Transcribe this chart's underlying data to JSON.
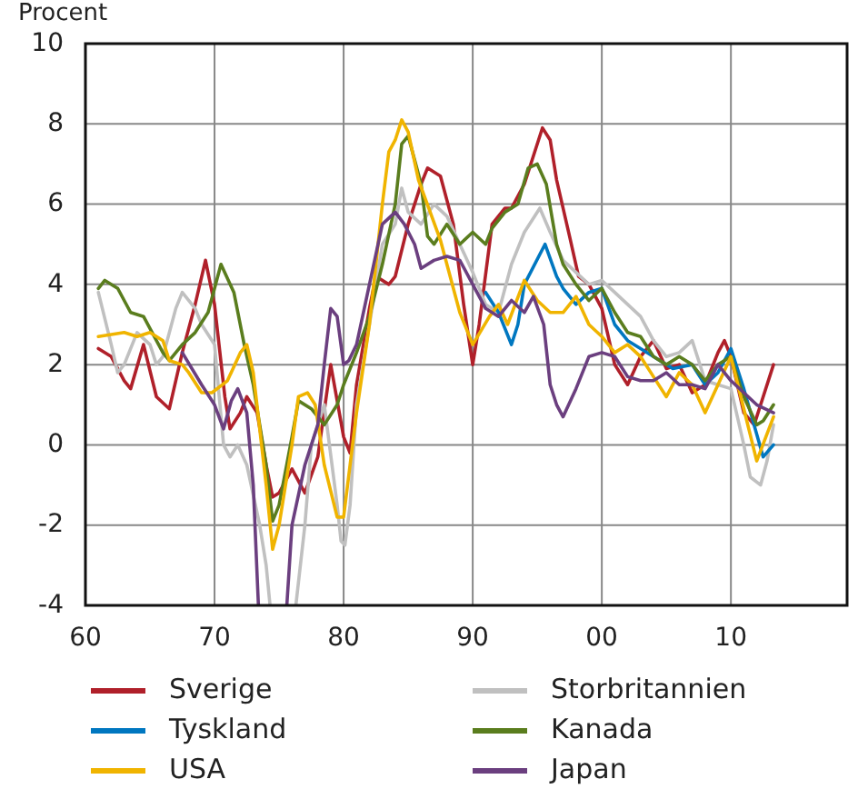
{
  "chart_data": {
    "type": "line",
    "ylabel": "Procent",
    "xlim": [
      1960,
      2019
    ],
    "xticks": [
      {
        "value": 1960,
        "label": "60"
      },
      {
        "value": 1970,
        "label": "70"
      },
      {
        "value": 1980,
        "label": "80"
      },
      {
        "value": 1990,
        "label": "90"
      },
      {
        "value": 2000,
        "label": "00"
      },
      {
        "value": 2010,
        "label": "10"
      }
    ],
    "ylim": [
      -4,
      10
    ],
    "yticks": [
      -4,
      -2,
      0,
      2,
      4,
      6,
      8,
      10
    ],
    "grid": true,
    "legend": "bottom",
    "line_style": "solid",
    "marker": "none",
    "series": [
      {
        "name": "Sverige",
        "color": "#b0202a",
        "x": [
          1961,
          1962,
          1963,
          1963.5,
          1964.5,
          1965.5,
          1966.5,
          1967.5,
          1968.5,
          1969.3,
          1970,
          1970.8,
          1971.2,
          1972,
          1972.5,
          1973.3,
          1974,
          1974.5,
          1975,
          1976,
          1977,
          1978,
          1979,
          1980,
          1980.5,
          1981,
          1982,
          1982.5,
          1983.5,
          1984,
          1985,
          1986,
          1986.5,
          1987.5,
          1988.5,
          1989.3,
          1990,
          1990.5,
          1991.5,
          1992.5,
          1993,
          1994,
          1995.4,
          1996,
          1996.5,
          1997.5,
          1998.2,
          1999,
          2000,
          2001,
          2002,
          2003,
          2004,
          2005,
          2006,
          2007,
          2008,
          2009,
          2009.5,
          2010,
          2011,
          2011.8,
          2012.5,
          2013.3
        ],
        "values": [
          2.4,
          2.2,
          1.6,
          1.4,
          2.5,
          1.2,
          0.9,
          2.3,
          3.5,
          4.6,
          3.5,
          1.2,
          0.4,
          0.8,
          1.2,
          0.8,
          -0.5,
          -1.3,
          -1.2,
          -0.6,
          -1.2,
          -0.3,
          2.0,
          0.2,
          -0.2,
          1.5,
          3.4,
          4.2,
          4.0,
          4.2,
          5.5,
          6.5,
          6.9,
          6.7,
          5.5,
          3.5,
          2.0,
          3.0,
          5.5,
          5.9,
          5.9,
          6.5,
          7.9,
          7.6,
          6.6,
          5.2,
          4.2,
          4.0,
          3.4,
          2.0,
          1.5,
          2.2,
          2.6,
          1.9,
          2.0,
          1.3,
          1.5,
          2.3,
          2.6,
          2.2,
          0.8,
          0.5,
          1.2,
          2.0
        ]
      },
      {
        "name": "Storbritannien",
        "color": "#c0c0c0",
        "x": [
          1961,
          1962,
          1962.5,
          1963,
          1964,
          1965,
          1965.5,
          1966,
          1967,
          1967.5,
          1968.5,
          1969,
          1970,
          1970.7,
          1971.2,
          1971.8,
          1972.5,
          1973.5,
          1974,
          1974.3,
          1975,
          1976.3,
          1977,
          1977.5,
          1978.5,
          1979.5,
          1979.8,
          1980.1,
          1980.5,
          1981,
          1982,
          1983,
          1984,
          1984.5,
          1985,
          1986,
          1987,
          1988,
          1989,
          1990,
          1991,
          1992,
          1993,
          1994,
          1995.2,
          1996,
          1997,
          1998,
          1999,
          2000,
          2001,
          2002,
          2003,
          2004,
          2005,
          2006,
          2007,
          2008,
          2009,
          2010,
          2011,
          2011.5,
          2012.3,
          2012.8,
          2013.3
        ],
        "values": [
          3.8,
          2.5,
          1.8,
          2.0,
          2.8,
          2.5,
          2.0,
          2.2,
          3.4,
          3.8,
          3.4,
          3.0,
          2.5,
          0.0,
          -0.3,
          0.0,
          -0.5,
          -2.0,
          -3.0,
          -4,
          null,
          -4,
          -2,
          0.0,
          1.0,
          -1.5,
          -2.4,
          -2.5,
          -1.5,
          1.0,
          3.0,
          5.0,
          5.5,
          6.4,
          5.8,
          5.5,
          6.0,
          5.7,
          5.0,
          4.3,
          3.5,
          3.3,
          4.5,
          5.3,
          5.9,
          5.3,
          4.6,
          4.3,
          4.0,
          4.1,
          3.8,
          3.5,
          3.2,
          2.6,
          2.2,
          2.3,
          2.6,
          1.6,
          1.5,
          1.4,
          0.0,
          -0.8,
          -1.0,
          -0.4,
          0.5
        ]
      },
      {
        "name": "Tyskland",
        "color": "#0077c0",
        "x": [
          1991,
          1992,
          1993,
          1993.5,
          1994,
          1995.6,
          1996.5,
          1997,
          1998,
          1999,
          2000,
          2001,
          2002,
          2003,
          2004,
          2005.5,
          2007,
          2008,
          2009,
          2010,
          2011,
          2012.5,
          2013.3
        ],
        "values": [
          3.8,
          3.3,
          2.5,
          3.0,
          4.0,
          5.0,
          4.2,
          3.9,
          3.5,
          3.8,
          3.9,
          3.0,
          2.6,
          2.4,
          2.2,
          1.9,
          2.0,
          1.5,
          1.8,
          2.4,
          1.4,
          -0.3,
          0.0
        ]
      },
      {
        "name": "Kanada",
        "color": "#5a7d1e",
        "x": [
          1961,
          1961.5,
          1962.5,
          1963.5,
          1964.5,
          1965,
          1966,
          1966.5,
          1967.5,
          1968.5,
          1969.5,
          1970.5,
          1971.5,
          1972.3,
          1973,
          1974,
          1974.5,
          1975,
          1976,
          1976.5,
          1977.5,
          1978.5,
          1979.5,
          1980,
          1981,
          1982,
          1983,
          1984,
          1984.5,
          1985,
          1986,
          1986.5,
          1987,
          1988,
          1989,
          1990,
          1991,
          1991.5,
          1992.5,
          1993.5,
          1994.3,
          1995,
          1995.7,
          1996.5,
          1997,
          1998,
          1999,
          2000,
          2001,
          2002,
          2003,
          2004,
          2005,
          2006,
          2007,
          2008,
          2009,
          2010,
          2011,
          2012,
          2012.5,
          2013.3
        ],
        "values": [
          3.9,
          4.1,
          3.9,
          3.3,
          3.2,
          2.9,
          2.3,
          2.1,
          2.5,
          2.8,
          3.3,
          4.5,
          3.8,
          2.5,
          1.5,
          -0.5,
          -1.9,
          -1.5,
          0.2,
          1.1,
          0.9,
          0.5,
          1.0,
          1.5,
          2.3,
          3.2,
          4.5,
          6.0,
          7.5,
          7.7,
          6.5,
          5.2,
          5.0,
          5.5,
          5.0,
          5.3,
          5.0,
          5.4,
          5.8,
          6.0,
          6.9,
          7.0,
          6.5,
          5.0,
          4.5,
          4.0,
          3.6,
          3.9,
          3.3,
          2.8,
          2.7,
          2.2,
          2.0,
          2.2,
          2.0,
          1.6,
          2.0,
          2.2,
          1.2,
          0.5,
          0.6,
          1.0
        ]
      },
      {
        "name": "USA",
        "color": "#f0b400",
        "x": [
          1961,
          1962,
          1963,
          1964,
          1965,
          1966,
          1966.5,
          1967.5,
          1968,
          1969,
          1969.8,
          1971,
          1972,
          1972.5,
          1973,
          1974,
          1974.5,
          1975,
          1976,
          1976.5,
          1977.2,
          1977.8,
          1978.5,
          1979.5,
          1980,
          1980.5,
          1981,
          1982,
          1983,
          1983.5,
          1984,
          1984.5,
          1985,
          1985.8,
          1987.5,
          1989,
          1990,
          1991.3,
          1992,
          1992.7,
          1994,
          1995,
          1996,
          1997,
          1998,
          1999,
          2000,
          2001,
          2002,
          2003,
          2004,
          2005,
          2006,
          2007,
          2008,
          2009,
          2010,
          2011,
          2012,
          2013.3
        ],
        "values": [
          2.7,
          2.75,
          2.8,
          2.7,
          2.8,
          2.6,
          2.1,
          2.0,
          1.8,
          1.3,
          1.3,
          1.6,
          2.3,
          2.5,
          1.8,
          -1.0,
          -2.6,
          -2.0,
          0.0,
          1.2,
          1.3,
          1.0,
          -0.5,
          -1.8,
          -1.8,
          -0.5,
          0.8,
          3.0,
          6.0,
          7.3,
          7.6,
          8.1,
          7.8,
          6.6,
          5.1,
          3.3,
          2.5,
          3.2,
          3.5,
          3.0,
          4.1,
          3.6,
          3.3,
          3.3,
          3.7,
          3.0,
          2.7,
          2.3,
          2.5,
          2.2,
          1.7,
          1.2,
          1.8,
          1.5,
          0.8,
          1.5,
          2.2,
          0.9,
          -0.4,
          0.7
        ]
      },
      {
        "name": "Japan",
        "color": "#6b3f7f",
        "x": [
          1967.5,
          1969,
          1970,
          1970.7,
          1971.3,
          1971.8,
          1972.5,
          1973,
          1973.4,
          1974.5,
          1975.6,
          1976,
          1977,
          1978,
          1978.5,
          1979,
          1979.5,
          1980,
          1980.4,
          1981,
          1982,
          1983,
          1984,
          1984.7,
          1985.5,
          1986,
          1987,
          1988,
          1989,
          1990,
          1991,
          1992,
          1993,
          1994,
          1994.7,
          1995.5,
          1996,
          1996.5,
          1997,
          1998,
          1999,
          2000,
          2001,
          2002,
          2003,
          2004,
          2005,
          2006,
          2007,
          2008,
          2009,
          2010,
          2011,
          2012,
          2013.3
        ],
        "values": [
          2.3,
          1.5,
          1.0,
          0.4,
          1.1,
          1.4,
          0.8,
          -1.0,
          -4,
          null,
          -4,
          -2,
          -0.5,
          0.5,
          2.0,
          3.4,
          3.2,
          2.0,
          2.1,
          2.5,
          4.0,
          5.5,
          5.8,
          5.5,
          5.0,
          4.4,
          4.6,
          4.7,
          4.6,
          4.0,
          3.4,
          3.2,
          3.6,
          3.3,
          3.7,
          3.0,
          1.5,
          1.0,
          0.7,
          1.4,
          2.2,
          2.3,
          2.2,
          1.7,
          1.6,
          1.6,
          1.8,
          1.5,
          1.5,
          1.4,
          2.0,
          1.6,
          1.3,
          1.0,
          0.8
        ]
      }
    ]
  }
}
